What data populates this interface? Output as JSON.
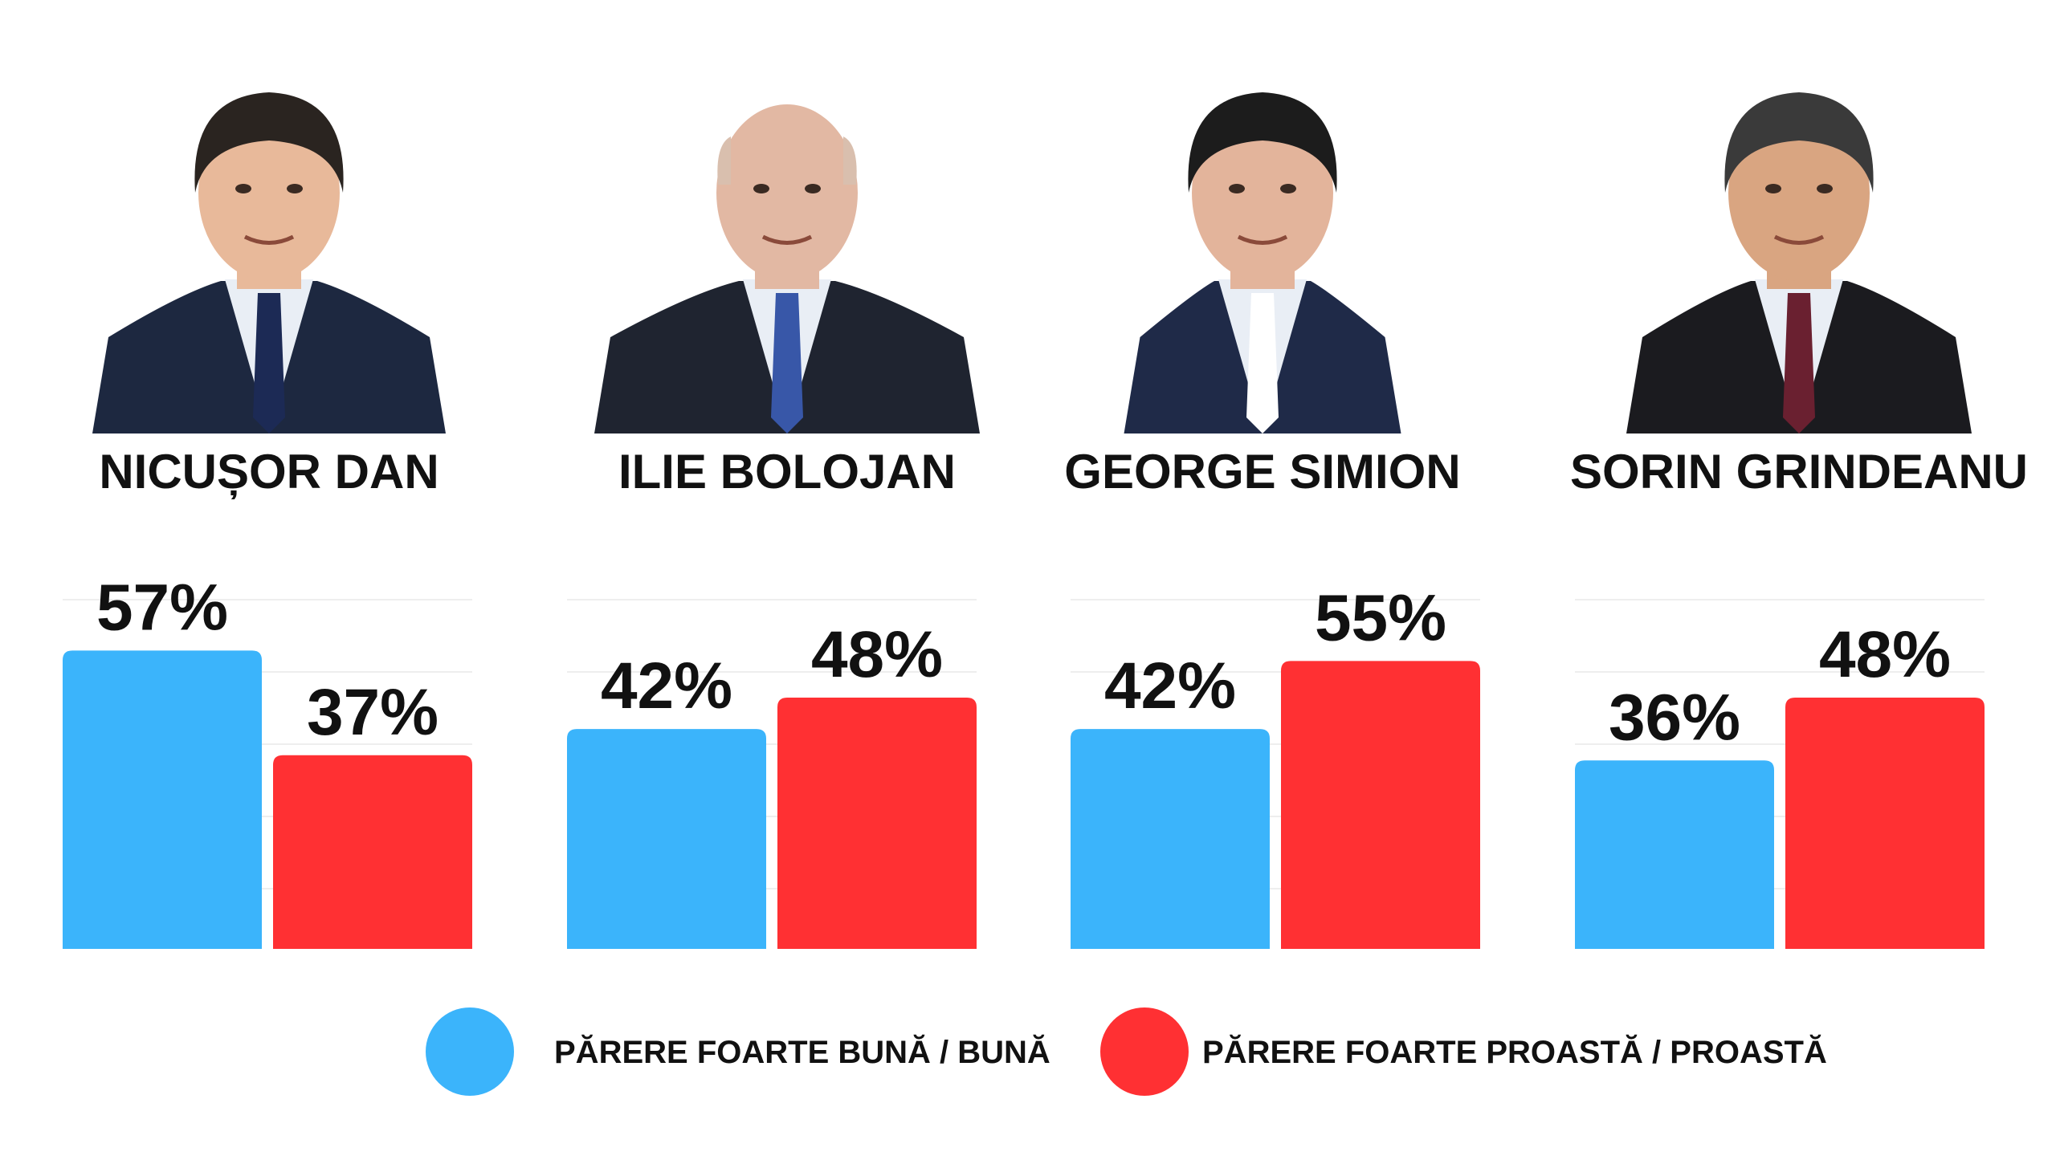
{
  "chart_data": {
    "type": "bar",
    "categories": [
      "NICUȘOR DAN",
      "ILIE BOLOJAN",
      "GEORGE SIMION",
      "SORIN GRINDEANU"
    ],
    "series": [
      {
        "name": "PĂRERE FOARTE BUNĂ / BUNĂ",
        "color": "#3BB4FB",
        "values": [
          57,
          42,
          42,
          36
        ]
      },
      {
        "name": "PĂRERE FOARTE PROASTĂ / PROASTĂ",
        "color": "#FF3033",
        "values": [
          37,
          48,
          55,
          48
        ]
      }
    ],
    "value_labels": {
      "series_0": [
        "57%",
        "42%",
        "42%",
        "36%"
      ],
      "series_1": [
        "37%",
        "48%",
        "55%",
        "48%"
      ]
    },
    "unit": "%",
    "legend_position": "bottom",
    "portrait_icons": [
      "portrait-nicusor-dan-icon",
      "portrait-ilie-bolojan-icon",
      "portrait-george-simion-icon",
      "portrait-sorin-grindeanu-icon"
    ]
  },
  "legend": {
    "good_label": "PĂRERE FOARTE BUNĂ / BUNĂ",
    "bad_label": "PĂRERE FOARTE PROASTĂ / PROASTĂ"
  }
}
